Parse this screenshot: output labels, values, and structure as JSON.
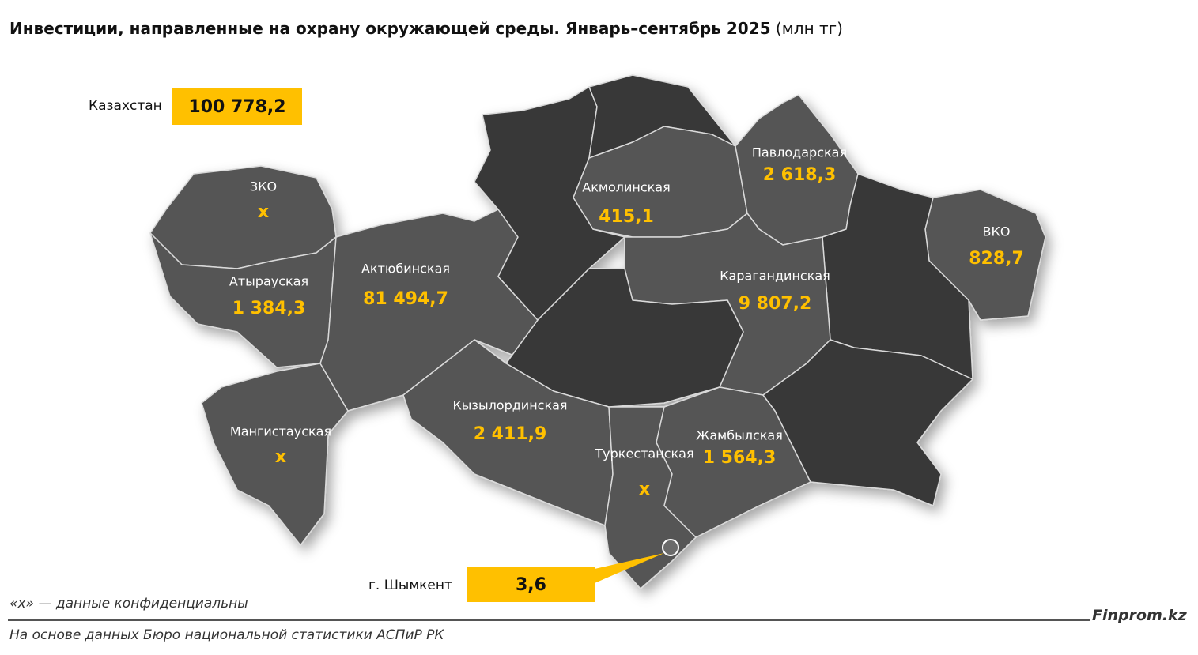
{
  "title": "Инвестиции, направленные на охрану окружающей среды. Январь–сентябрь 2025",
  "unit": "(млн тг)",
  "total": {
    "label": "Казахстан",
    "value": "100 778,2"
  },
  "regions": [
    {
      "name": "ЗКО",
      "value": "x"
    },
    {
      "name": "Атырауская",
      "value": "1 384,3"
    },
    {
      "name": "Актюбинская",
      "value": "81 494,7"
    },
    {
      "name": "Мангистауская",
      "value": "x"
    },
    {
      "name": "Акмолинская",
      "value": "415,1"
    },
    {
      "name": "Павлодарская",
      "value": "2 618,3"
    },
    {
      "name": "ВКО",
      "value": "828,7"
    },
    {
      "name": "Карагандинская",
      "value": "9 807,2"
    },
    {
      "name": "Кызылординская",
      "value": "2 411,9"
    },
    {
      "name": "Туркестанская",
      "value": "x"
    },
    {
      "name": "Жамбылская",
      "value": "1 564,3"
    }
  ],
  "city": {
    "label": "г. Шымкент",
    "value": "3,6"
  },
  "note": "«x» — данные конфиденциальны",
  "brand": "Finprom.kz",
  "source": "На основе данных Бюро национальной статистики АСПиР РК"
}
